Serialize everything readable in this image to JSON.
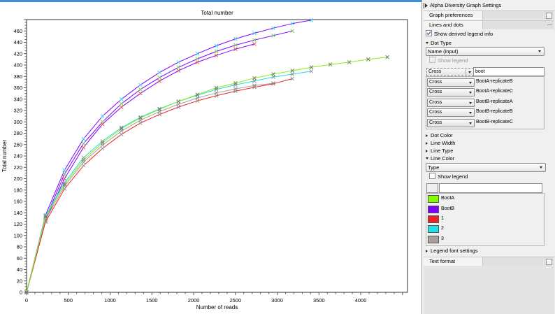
{
  "chart_data": {
    "type": "line",
    "title": "Total number",
    "xlabel": "Number of reads",
    "ylabel": "Total number",
    "xlim": [
      0,
      4560
    ],
    "ylim": [
      0,
      480
    ],
    "xticks": [
      0,
      500,
      1000,
      1500,
      2000,
      2500,
      3000,
      3500,
      4000
    ],
    "yticks": [
      0,
      20,
      40,
      60,
      80,
      100,
      120,
      140,
      160,
      180,
      200,
      220,
      240,
      260,
      280,
      300,
      320,
      340,
      360,
      380,
      400,
      420,
      440,
      460
    ],
    "grid": false,
    "legend": "none",
    "marker": "cross",
    "series": [
      {
        "line_color": "#7f00ff",
        "marker_color": "#3ad0f0",
        "x": [
          0,
          227,
          454,
          682,
          909,
          1136,
          1363,
          1591,
          1818,
          2045,
          2272,
          2500,
          2727,
          2954,
          3181,
          3409
        ],
        "y": [
          0,
          136,
          215,
          270,
          310,
          340,
          365,
          387,
          405,
          420,
          434,
          446,
          456,
          465,
          473,
          479
        ]
      },
      {
        "line_color": "#7f00ff",
        "marker_color": "#70d050",
        "x": [
          0,
          227,
          454,
          682,
          909,
          1136,
          1363,
          1591,
          1818,
          2045,
          2272,
          2500,
          2727,
          2954,
          3181
        ],
        "y": [
          0,
          130,
          208,
          262,
          300,
          332,
          357,
          378,
          396,
          411,
          424,
          435,
          444,
          452,
          460
        ]
      },
      {
        "line_color": "#7f00ff",
        "marker_color": "#e05050",
        "x": [
          0,
          227,
          454,
          682,
          909,
          1136,
          1363,
          1591,
          1818,
          2045,
          2272,
          2500,
          2727
        ],
        "y": [
          0,
          126,
          200,
          255,
          296,
          326,
          350,
          372,
          390,
          405,
          417,
          428,
          437
        ]
      },
      {
        "line_color": "#a8a0a0",
        "marker_color": "#909090",
        "x": [
          0,
          227,
          454,
          682,
          909,
          1136,
          1363,
          1591,
          1818,
          2045,
          2272,
          2500,
          2727,
          2954
        ],
        "y": [
          0,
          128,
          187,
          229,
          259,
          284,
          303,
          318,
          331,
          342,
          351,
          358,
          364,
          368
        ]
      },
      {
        "line_color": "#ee2222",
        "marker_color": "#909090",
        "x": [
          0,
          227,
          454,
          682,
          909,
          1136,
          1363,
          1591,
          1818,
          2045,
          2272,
          2500,
          2727,
          2954,
          3181
        ],
        "y": [
          0,
          124,
          182,
          223,
          253,
          278,
          298,
          313,
          326,
          337,
          346,
          354,
          361,
          367,
          376
        ]
      },
      {
        "line_color": "#22dde0",
        "marker_color": "#909090",
        "x": [
          0,
          227,
          454,
          682,
          909,
          1136,
          1363,
          1591,
          1818,
          2045,
          2272,
          2500,
          2727,
          2954,
          3181,
          3409
        ],
        "y": [
          0,
          135,
          193,
          237,
          266,
          290,
          308,
          323,
          336,
          347,
          357,
          365,
          372,
          379,
          384,
          389
        ]
      },
      {
        "line_color": "#88ee11",
        "marker_color": "#707070",
        "x": [
          0,
          227,
          454,
          682,
          909,
          1136,
          1363,
          1591,
          1818,
          2045,
          2272,
          2500,
          2727,
          2954,
          3181,
          3409,
          3636,
          3863,
          4090,
          4318
        ],
        "y": [
          0,
          133,
          190,
          233,
          263,
          288,
          307,
          322,
          336,
          348,
          360,
          368,
          377,
          384,
          390,
          396,
          401,
          405,
          410,
          414
        ]
      }
    ]
  },
  "panel": {
    "title": "Alpha Diversity Graph Settings",
    "tab_graph_preferences": "Graph preferences",
    "tab_lines_and_dots": "Lines and dots",
    "show_derived_legend": {
      "label": "Show derived legend info",
      "checked": true
    },
    "dot_type": {
      "label": "Dot Type",
      "select_value": "Name (input)",
      "show_legend": {
        "label": "Show legend",
        "checked": false,
        "disabled": true
      },
      "filter_shape": "Cross",
      "filter_value": "boot",
      "rows": [
        {
          "shape": "Cross",
          "name": "BootA-replicateB"
        },
        {
          "shape": "Cross",
          "name": "BootA-replicateC"
        },
        {
          "shape": "Cross",
          "name": "BootB-replicateA"
        },
        {
          "shape": "Cross",
          "name": "BootB-replicateB"
        },
        {
          "shape": "Cross",
          "name": "BootB-replicateC"
        }
      ]
    },
    "dot_color": "Dot Color",
    "line_width": "Line Width",
    "line_type": "Line Type",
    "line_color": {
      "label": "Line Color",
      "select_value": "Type",
      "show_legend": {
        "label": "Show legend",
        "checked": false
      },
      "rows": [
        {
          "name": "BootA",
          "color": "#80ff00"
        },
        {
          "name": "BootB",
          "color": "#7f00ff"
        },
        {
          "name": "1",
          "color": "#ee2222"
        },
        {
          "name": "2",
          "color": "#22e0e8"
        },
        {
          "name": "3",
          "color": "#ab9d9b"
        }
      ]
    },
    "legend_font_settings": "Legend font settings",
    "tab_text_format": "Text format"
  }
}
